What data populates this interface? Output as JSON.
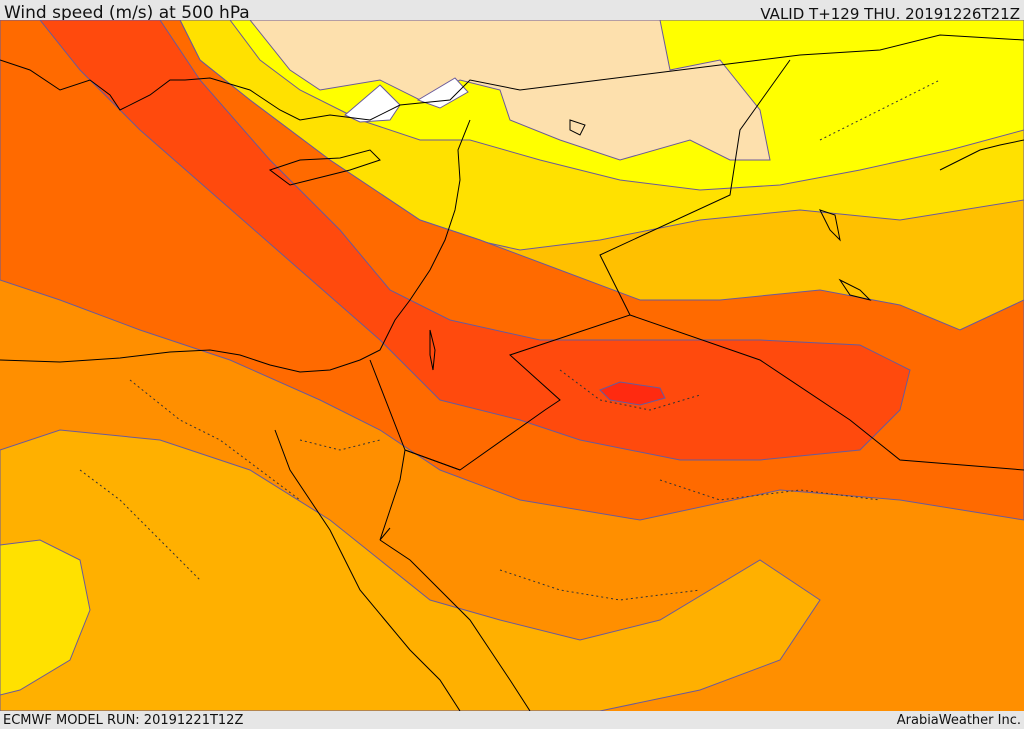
{
  "header": {
    "title": "Wind speed (m/s) at 500 hPa",
    "valid": "VALID T+129 THU. 20191226T21Z"
  },
  "footer": {
    "model_run": "ECMWF MODEL RUN: 20191221T12Z",
    "credit": "ArabiaWeather Inc."
  },
  "colors": {
    "band_white": "#ffffff",
    "band_cream": "#fde0ad",
    "band_yellow": "#ffff00",
    "band_gold": "#ffe100",
    "band_amber": "#ffc000",
    "band_light_orange": "#ffb000",
    "band_orange": "#ff8f00",
    "band_dark_orange": "#ff6a00",
    "band_red_orange": "#ff4a0d",
    "band_red": "#ff2a10",
    "contour_line": "#6a5a9a",
    "coastline": "#000000"
  }
}
